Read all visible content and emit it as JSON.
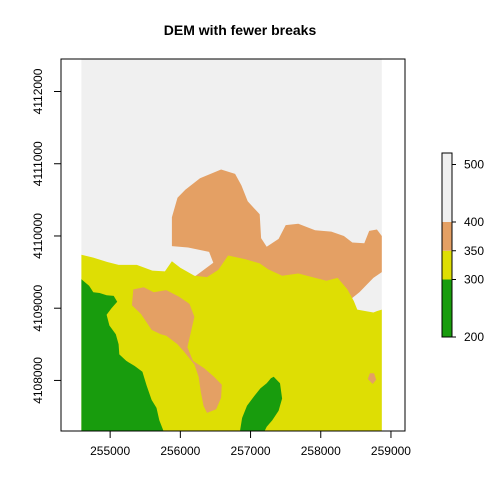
{
  "chart_data": {
    "type": "heatmap",
    "title": "DEM with fewer breaks",
    "xlabel": "",
    "ylabel": "",
    "xlim": [
      254300,
      259200
    ],
    "ylim": [
      4107300,
      4112450
    ],
    "x_ticks": [
      255000,
      256000,
      257000,
      258000,
      259000
    ],
    "y_ticks": [
      4108000,
      4109000,
      4110000,
      4111000,
      4112000
    ],
    "raster_extent": {
      "x": [
        254590,
        258870
      ],
      "y": [
        4107300,
        4112450
      ]
    },
    "legend": {
      "ticks": [
        200,
        300,
        350,
        400,
        500
      ],
      "range": [
        200,
        520
      ],
      "position": "right",
      "classes": [
        {
          "from": 200,
          "to": 300,
          "color": "#189c0d"
        },
        {
          "from": 300,
          "to": 350,
          "color": "#dede04"
        },
        {
          "from": 350,
          "to": 400,
          "color": "#e4a064"
        },
        {
          "from": 400,
          "to": 520,
          "color": "#f0f0f0"
        }
      ]
    },
    "regions": [
      {
        "name": "elevation 400-520",
        "color": "#f0f0f0",
        "polygon": [
          [
            254590,
            4112450
          ],
          [
            258870,
            4112450
          ],
          [
            258870,
            4107300
          ],
          [
            254590,
            4107300
          ]
        ]
      },
      {
        "name": "elevation 350-400",
        "color": "#e4a064",
        "polygon": [
          [
            254590,
            4110130
          ],
          [
            254680,
            4110150
          ],
          [
            254780,
            4110010
          ],
          [
            254860,
            4109840
          ],
          [
            254960,
            4109750
          ],
          [
            255100,
            4109690
          ],
          [
            255300,
            4109720
          ],
          [
            255520,
            4109700
          ],
          [
            255760,
            4109780
          ],
          [
            255880,
            4109860
          ],
          [
            255880,
            4110260
          ],
          [
            255960,
            4110530
          ],
          [
            256070,
            4110640
          ],
          [
            256280,
            4110800
          ],
          [
            256580,
            4110920
          ],
          [
            256780,
            4110860
          ],
          [
            256870,
            4110700
          ],
          [
            256960,
            4110480
          ],
          [
            257130,
            4110300
          ],
          [
            257150,
            4109970
          ],
          [
            257230,
            4109850
          ],
          [
            257400,
            4109960
          ],
          [
            257500,
            4110150
          ],
          [
            257680,
            4110170
          ],
          [
            257920,
            4110080
          ],
          [
            258150,
            4110060
          ],
          [
            258330,
            4110000
          ],
          [
            258450,
            4109910
          ],
          [
            258620,
            4109900
          ],
          [
            258690,
            4110070
          ],
          [
            258800,
            4110090
          ],
          [
            258870,
            4110000
          ],
          [
            258870,
            4109500
          ],
          [
            258750,
            4109420
          ],
          [
            258550,
            4109220
          ],
          [
            258320,
            4109040
          ],
          [
            258060,
            4108990
          ],
          [
            257850,
            4108820
          ],
          [
            257700,
            4108880
          ],
          [
            257560,
            4108720
          ],
          [
            257620,
            4108550
          ],
          [
            257600,
            4108450
          ],
          [
            257400,
            4108300
          ],
          [
            257150,
            4108300
          ],
          [
            256850,
            4108200
          ],
          [
            256670,
            4108150
          ],
          [
            256580,
            4108160
          ],
          [
            256420,
            4108020
          ],
          [
            256400,
            4107870
          ],
          [
            256430,
            4107630
          ],
          [
            256350,
            4107520
          ],
          [
            256180,
            4107650
          ],
          [
            256020,
            4108140
          ],
          [
            255920,
            4108310
          ],
          [
            255760,
            4108450
          ],
          [
            255590,
            4108700
          ],
          [
            255440,
            4108910
          ],
          [
            255310,
            4109000
          ],
          [
            255300,
            4109280
          ],
          [
            255480,
            4109300
          ],
          [
            255590,
            4109210
          ],
          [
            255650,
            4109020
          ],
          [
            255830,
            4109020
          ],
          [
            255960,
            4109090
          ],
          [
            256090,
            4109140
          ],
          [
            256160,
            4109330
          ],
          [
            256220,
            4109450
          ],
          [
            256470,
            4109630
          ],
          [
            256410,
            4109780
          ],
          [
            256110,
            4109840
          ],
          [
            255880,
            4109860
          ],
          [
            255760,
            4109780
          ],
          [
            255520,
            4109700
          ],
          [
            255300,
            4109720
          ],
          [
            255100,
            4109690
          ],
          [
            254960,
            4109750
          ],
          [
            254860,
            4109840
          ],
          [
            254780,
            4110010
          ],
          [
            254680,
            4110150
          ],
          [
            254590,
            4110130
          ]
        ]
      },
      {
        "name": "elevation 300-350",
        "color": "#dede04",
        "polygon": [
          [
            254590,
            4109740
          ],
          [
            254760,
            4109700
          ],
          [
            254960,
            4109640
          ],
          [
            255120,
            4109600
          ],
          [
            255380,
            4109600
          ],
          [
            255600,
            4109520
          ],
          [
            255780,
            4109510
          ],
          [
            255880,
            4109650
          ],
          [
            256000,
            4109560
          ],
          [
            256200,
            4109450
          ],
          [
            256380,
            4109430
          ],
          [
            256540,
            4109530
          ],
          [
            256680,
            4109730
          ],
          [
            256920,
            4109680
          ],
          [
            257130,
            4109620
          ],
          [
            257250,
            4109540
          ],
          [
            257450,
            4109450
          ],
          [
            257680,
            4109480
          ],
          [
            257880,
            4109430
          ],
          [
            258080,
            4109380
          ],
          [
            258240,
            4109420
          ],
          [
            258380,
            4109260
          ],
          [
            258470,
            4109100
          ],
          [
            258520,
            4108980
          ],
          [
            258750,
            4108940
          ],
          [
            258800,
            4108960
          ],
          [
            258870,
            4108980
          ],
          [
            258870,
            4107300
          ],
          [
            254590,
            4107300
          ]
        ]
      },
      {
        "name": "elevation 350-400",
        "color": "#e4a064",
        "polygon": [
          [
            255310,
            4109040
          ],
          [
            255440,
            4108920
          ],
          [
            255590,
            4108700
          ],
          [
            255720,
            4108640
          ],
          [
            255800,
            4108620
          ],
          [
            255960,
            4108500
          ],
          [
            256050,
            4108400
          ],
          [
            256200,
            4108220
          ],
          [
            256260,
            4108050
          ],
          [
            256290,
            4107850
          ],
          [
            256330,
            4107650
          ],
          [
            256380,
            4107550
          ],
          [
            256510,
            4107600
          ],
          [
            256580,
            4107760
          ],
          [
            256590,
            4107940
          ],
          [
            256480,
            4108050
          ],
          [
            256340,
            4108170
          ],
          [
            256180,
            4108270
          ],
          [
            256100,
            4108460
          ],
          [
            256150,
            4108670
          ],
          [
            256200,
            4108880
          ],
          [
            256130,
            4109060
          ],
          [
            255980,
            4109160
          ],
          [
            255800,
            4109250
          ],
          [
            255620,
            4109220
          ],
          [
            255480,
            4109290
          ],
          [
            255330,
            4109260
          ]
        ]
      },
      {
        "name": "elevation 350-400",
        "color": "#e4a064",
        "polygon": [
          [
            258670,
            4108020
          ],
          [
            258740,
            4107950
          ],
          [
            258790,
            4108010
          ],
          [
            258760,
            4108100
          ],
          [
            258700,
            4108100
          ]
        ]
      },
      {
        "name": "elevation 200-300",
        "color": "#189c0d",
        "polygon": [
          [
            254590,
            4109400
          ],
          [
            254640,
            4109360
          ],
          [
            254700,
            4109310
          ],
          [
            254760,
            4109220
          ],
          [
            254850,
            4109210
          ],
          [
            254950,
            4109180
          ],
          [
            255050,
            4109170
          ],
          [
            255100,
            4109090
          ],
          [
            255020,
            4109000
          ],
          [
            254950,
            4108910
          ],
          [
            254990,
            4108760
          ],
          [
            255080,
            4108640
          ],
          [
            255120,
            4108500
          ],
          [
            255130,
            4108360
          ],
          [
            255230,
            4108270
          ],
          [
            255350,
            4108200
          ],
          [
            255460,
            4108120
          ],
          [
            255520,
            4107930
          ],
          [
            255590,
            4107730
          ],
          [
            255660,
            4107620
          ],
          [
            255700,
            4107450
          ],
          [
            255760,
            4107300
          ],
          [
            254590,
            4107300
          ]
        ]
      },
      {
        "name": "elevation 200-300",
        "color": "#189c0d",
        "polygon": [
          [
            256850,
            4107300
          ],
          [
            256880,
            4107480
          ],
          [
            256950,
            4107650
          ],
          [
            257050,
            4107780
          ],
          [
            257140,
            4107890
          ],
          [
            257230,
            4107960
          ],
          [
            257290,
            4108030
          ],
          [
            257330,
            4108050
          ],
          [
            257420,
            4107960
          ],
          [
            257450,
            4107750
          ],
          [
            257400,
            4107580
          ],
          [
            257310,
            4107450
          ],
          [
            257230,
            4107360
          ],
          [
            257200,
            4107300
          ]
        ]
      },
      {
        "name": "elevation 400-520",
        "color": "#f0f0f0",
        "polygon": [
          [
            255470,
            4109760
          ],
          [
            255560,
            4109710
          ],
          [
            255630,
            4109760
          ],
          [
            255580,
            4109820
          ],
          [
            255500,
            4109820
          ]
        ]
      }
    ]
  }
}
